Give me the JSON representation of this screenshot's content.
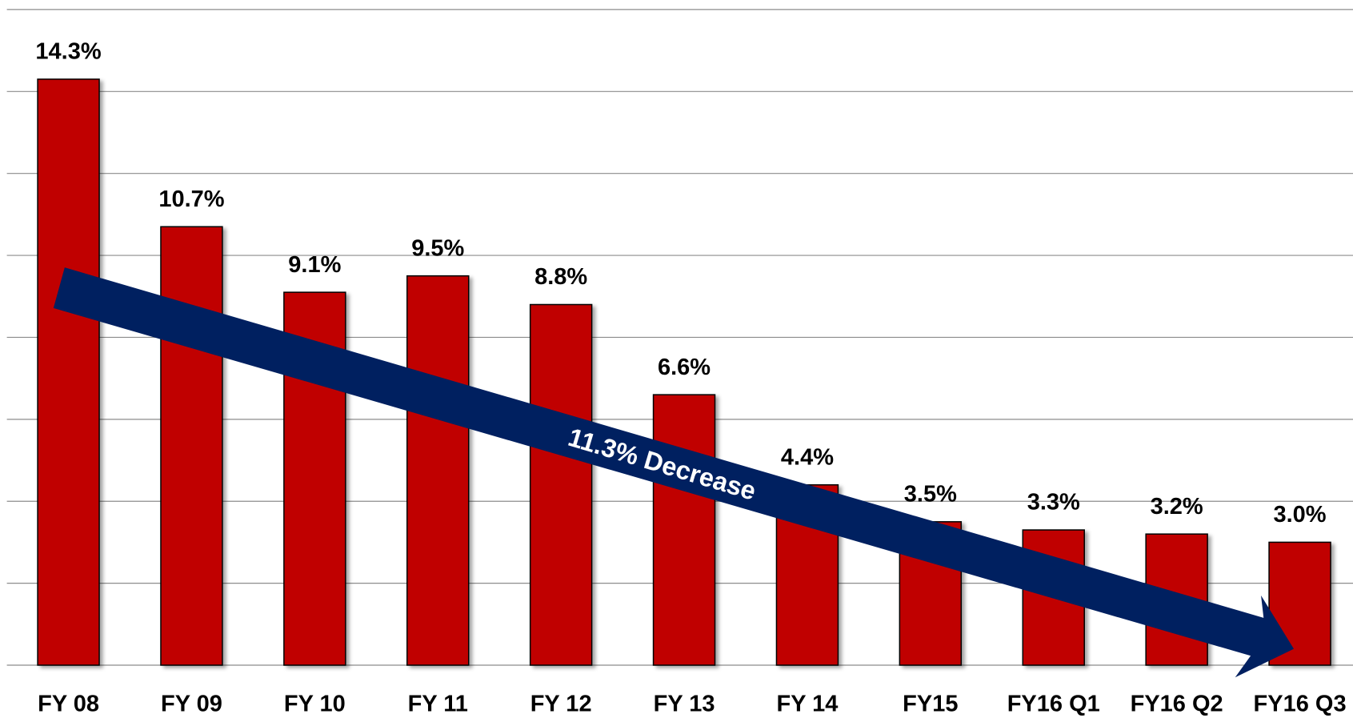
{
  "chart_data": {
    "type": "bar",
    "categories": [
      "FY 08",
      "FY 09",
      "FY 10",
      "FY 11",
      "FY 12",
      "FY 13",
      "FY 14",
      "FY15",
      "FY16 Q1",
      "FY16 Q2",
      "FY16 Q3"
    ],
    "values": [
      14.3,
      10.7,
      9.1,
      9.5,
      8.8,
      6.6,
      4.4,
      3.5,
      3.3,
      3.2,
      3.0
    ],
    "value_labels": [
      "14.3%",
      "10.7%",
      "9.1%",
      "9.5%",
      "8.8%",
      "6.6%",
      "4.4%",
      "3.5%",
      "3.3%",
      "3.2%",
      "3.0%"
    ],
    "color": "#c00000",
    "ylim": [
      0,
      16
    ],
    "yticks": [
      0,
      2,
      4,
      6,
      8,
      10,
      12,
      14,
      16
    ],
    "grid": true,
    "annotation": "11.3% Decrease"
  }
}
